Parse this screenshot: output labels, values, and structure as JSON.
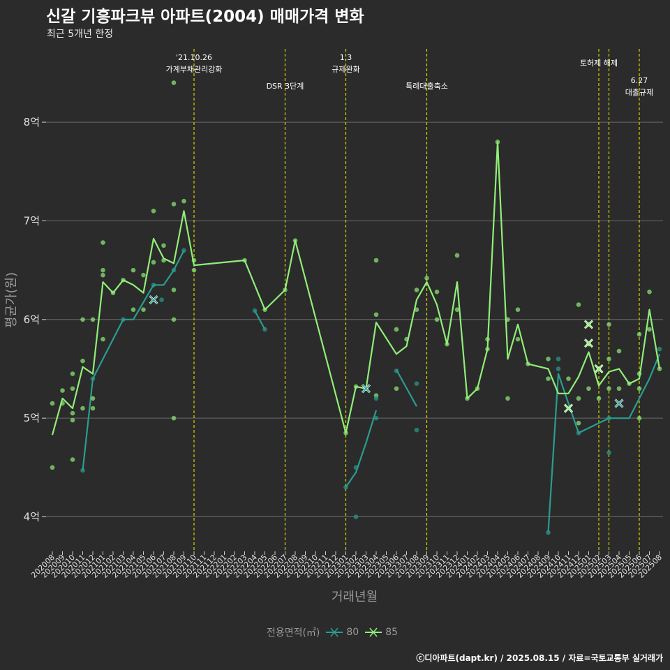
{
  "title": "신갈 기흥파크뷰 아파트(2004) 매매가격 변화",
  "subtitle": "최근 5개년 한정",
  "caption": "ⓒ디아파트(dapt.kr) / 2025.08.15 / 자료=국토교통부 실거래가",
  "colors": {
    "background": "#2b2b2b",
    "grid": "#6a6a6a",
    "series_80": "#2a9d8f",
    "series_85": "#90ee78",
    "event_line": "#d4d400",
    "axis_text": "#9a9a9a"
  },
  "chart_data": {
    "type": "line",
    "title": "신갈 기흥파크뷰 아파트(2004) 매매가격 변화",
    "subtitle": "최근 5개년 한정",
    "xlabel": "거래년월",
    "ylabel": "평균가(원)",
    "ylim": [
      3.65,
      8.8
    ],
    "y_ticks": [
      4,
      5,
      6,
      7,
      8
    ],
    "y_tick_labels": [
      "4억",
      "5억",
      "6억",
      "7억",
      "8억"
    ],
    "grid": true,
    "legend_position": "bottom",
    "legend_title": "전용면적(㎡)",
    "categories": [
      "202008",
      "202009",
      "202010",
      "202011",
      "202012",
      "202101",
      "202102",
      "202103",
      "202104",
      "202105",
      "202106",
      "202107",
      "202108",
      "202109",
      "202110",
      "202111",
      "202112",
      "202201",
      "202202",
      "202203",
      "202204",
      "202205",
      "202206",
      "202207",
      "202208",
      "202209",
      "202210",
      "202211",
      "202212",
      "202301",
      "202302",
      "202303",
      "202304",
      "202305",
      "202306",
      "202307",
      "202308",
      "202309",
      "202310",
      "202311",
      "202312",
      "202401",
      "202402",
      "202403",
      "202404",
      "202405",
      "202406",
      "202407",
      "202408",
      "202409",
      "202410",
      "202411",
      "202412",
      "202501",
      "202502",
      "202503",
      "202504",
      "202505",
      "202506",
      "202507",
      "202508"
    ],
    "events": [
      {
        "x": 14.0,
        "lines": [
          "'21.10.26",
          "가계부채관리강화"
        ],
        "level": 0
      },
      {
        "x": 23.0,
        "lines": [
          "DSR 3단계"
        ],
        "level": 1
      },
      {
        "x": 29.0,
        "lines": [
          "1.3",
          "규제완화"
        ],
        "level": 0
      },
      {
        "x": 37.0,
        "lines": [
          "특례대출축소"
        ],
        "level": 1
      },
      {
        "x": 54.0,
        "lines": [
          "토허제 해제"
        ],
        "level": 0
      },
      {
        "x": 55.0,
        "lines": [],
        "level": 0
      },
      {
        "x": 58.0,
        "lines": [
          "6.27",
          "대출규제"
        ],
        "level": 1
      }
    ],
    "series": [
      {
        "name": "80",
        "color": "#2a9d8f",
        "points": [
          [
            3,
            4.47
          ],
          [
            4,
            5.4
          ],
          [
            7,
            6.0
          ],
          [
            8,
            6.0
          ],
          [
            10,
            6.35
          ],
          [
            11,
            6.35
          ],
          [
            12,
            6.5
          ],
          [
            13,
            6.7
          ],
          [
            20,
            6.09
          ],
          [
            21,
            5.9
          ],
          [
            29,
            4.3
          ],
          [
            30,
            4.45
          ],
          [
            31,
            4.75
          ],
          [
            32,
            5.08
          ],
          [
            34,
            5.49
          ],
          [
            36,
            5.12
          ],
          [
            49,
            3.84
          ],
          [
            50,
            5.45
          ],
          [
            52,
            4.85
          ],
          [
            53,
            4.9
          ],
          [
            55,
            5.0
          ],
          [
            57,
            5.0
          ],
          [
            59,
            5.4
          ],
          [
            60,
            5.65
          ]
        ],
        "scatter": [
          [
            3,
            4.47
          ],
          [
            4,
            5.4
          ],
          [
            7,
            6.0
          ],
          [
            10,
            6.35
          ],
          [
            10.8,
            6.2
          ],
          [
            12,
            6.5
          ],
          [
            13,
            6.7
          ],
          [
            20,
            6.09
          ],
          [
            21,
            5.9
          ],
          [
            29,
            4.3
          ],
          [
            30,
            4.5
          ],
          [
            30,
            4.0
          ],
          [
            31,
            5.3
          ],
          [
            32,
            5.0
          ],
          [
            32,
            5.2
          ],
          [
            34,
            5.48
          ],
          [
            36,
            4.88
          ],
          [
            36,
            5.35
          ],
          [
            49,
            3.84
          ],
          [
            50,
            5.5
          ],
          [
            50,
            5.6
          ],
          [
            52,
            4.85
          ],
          [
            55,
            4.65
          ],
          [
            55,
            5.0
          ],
          [
            60,
            5.7
          ]
        ],
        "segments": [
          [
            [
              3,
              4.47
            ],
            [
              4,
              5.4
            ],
            [
              7,
              6.0
            ],
            [
              8,
              6.0
            ],
            [
              10,
              6.35
            ],
            [
              11,
              6.35
            ],
            [
              12,
              6.5
            ],
            [
              13,
              6.7
            ]
          ],
          [
            [
              20,
              6.09
            ],
            [
              21,
              5.9
            ]
          ],
          [
            [
              29,
              4.3
            ],
            [
              30,
              4.45
            ],
            [
              31,
              4.75
            ],
            [
              32,
              5.08
            ]
          ],
          [
            [
              34,
              5.49
            ],
            [
              36,
              5.12
            ]
          ],
          [
            [
              49,
              3.84
            ],
            [
              50,
              5.45
            ],
            [
              52,
              4.85
            ],
            [
              53,
              4.9
            ],
            [
              55,
              5.0
            ],
            [
              57,
              5.0
            ],
            [
              59,
              5.4
            ],
            [
              60,
              5.65
            ]
          ]
        ],
        "x_marks": [
          [
            10,
            6.2
          ],
          [
            31,
            5.3
          ],
          [
            56,
            5.15
          ]
        ]
      },
      {
        "name": "85",
        "color": "#90ee78",
        "points": [
          [
            0,
            4.83
          ],
          [
            1,
            5.2
          ],
          [
            2,
            5.1
          ],
          [
            3,
            5.52
          ],
          [
            4,
            5.45
          ],
          [
            5,
            6.38
          ],
          [
            6,
            6.27
          ],
          [
            7,
            6.4
          ],
          [
            8,
            6.35
          ],
          [
            9,
            6.27
          ],
          [
            10,
            6.82
          ],
          [
            11,
            6.62
          ],
          [
            12,
            6.57
          ],
          [
            13,
            7.1
          ],
          [
            14,
            6.55
          ],
          [
            19,
            6.6
          ],
          [
            21,
            6.1
          ],
          [
            23,
            6.3
          ],
          [
            24,
            6.8
          ],
          [
            29,
            4.85
          ],
          [
            30,
            5.32
          ],
          [
            31,
            5.3
          ],
          [
            32,
            5.97
          ],
          [
            34,
            5.65
          ],
          [
            35,
            5.73
          ],
          [
            36,
            6.2
          ],
          [
            37,
            6.38
          ],
          [
            38,
            6.15
          ],
          [
            39,
            5.75
          ],
          [
            40,
            6.38
          ],
          [
            41,
            5.2
          ],
          [
            42,
            5.3
          ],
          [
            43,
            5.7
          ],
          [
            44,
            7.8
          ],
          [
            45,
            5.6
          ],
          [
            46,
            5.95
          ],
          [
            47,
            5.55
          ],
          [
            49,
            5.5
          ],
          [
            50,
            5.25
          ],
          [
            51,
            5.25
          ],
          [
            52,
            5.42
          ],
          [
            53,
            5.67
          ],
          [
            54,
            5.33
          ],
          [
            55,
            5.47
          ],
          [
            56,
            5.5
          ],
          [
            57,
            5.35
          ],
          [
            58,
            5.4
          ],
          [
            59,
            6.1
          ],
          [
            60,
            5.5
          ]
        ],
        "scatter": [
          [
            0,
            5.15
          ],
          [
            0,
            4.5
          ],
          [
            1,
            5.28
          ],
          [
            1,
            5.15
          ],
          [
            2,
            5.05
          ],
          [
            2,
            5.3
          ],
          [
            2,
            5.45
          ],
          [
            2,
            4.58
          ],
          [
            2,
            4.98
          ],
          [
            3,
            5.1
          ],
          [
            3,
            5.58
          ],
          [
            3,
            6.0
          ],
          [
            4,
            5.2
          ],
          [
            4,
            5.1
          ],
          [
            4,
            6.0
          ],
          [
            5,
            6.5
          ],
          [
            5,
            6.78
          ],
          [
            5,
            5.8
          ],
          [
            5,
            6.45
          ],
          [
            6,
            6.27
          ],
          [
            7,
            6.4
          ],
          [
            8,
            6.5
          ],
          [
            8,
            6.1
          ],
          [
            9,
            6.45
          ],
          [
            9,
            6.1
          ],
          [
            10,
            6.58
          ],
          [
            10,
            7.1
          ],
          [
            11,
            6.75
          ],
          [
            11,
            6.6
          ],
          [
            12,
            8.4
          ],
          [
            12,
            7.17
          ],
          [
            12,
            6.3
          ],
          [
            12,
            6.0
          ],
          [
            12,
            5.0
          ],
          [
            13,
            7.2
          ],
          [
            14,
            6.6
          ],
          [
            14,
            6.5
          ],
          [
            19,
            6.6
          ],
          [
            21,
            6.1
          ],
          [
            23,
            6.3
          ],
          [
            24,
            6.8
          ],
          [
            29,
            4.85
          ],
          [
            30,
            5.32
          ],
          [
            31,
            5.3
          ],
          [
            32,
            6.05
          ],
          [
            32,
            6.6
          ],
          [
            32,
            5.23
          ],
          [
            34,
            5.9
          ],
          [
            34,
            5.3
          ],
          [
            35,
            5.8
          ],
          [
            36,
            6.3
          ],
          [
            36,
            6.1
          ],
          [
            37,
            6.42
          ],
          [
            38,
            6.28
          ],
          [
            38,
            6.0
          ],
          [
            39,
            5.75
          ],
          [
            40,
            6.65
          ],
          [
            40,
            6.1
          ],
          [
            41,
            5.2
          ],
          [
            42,
            5.3
          ],
          [
            43,
            5.8
          ],
          [
            43,
            5.7
          ],
          [
            44,
            7.8
          ],
          [
            45,
            6.0
          ],
          [
            45,
            5.2
          ],
          [
            46,
            6.1
          ],
          [
            46,
            5.8
          ],
          [
            47,
            5.55
          ],
          [
            49,
            5.6
          ],
          [
            49,
            5.4
          ],
          [
            51,
            5.4
          ],
          [
            52,
            6.15
          ],
          [
            52,
            5.2
          ],
          [
            52,
            4.95
          ],
          [
            53,
            5.95
          ],
          [
            53,
            5.75
          ],
          [
            53,
            5.3
          ],
          [
            54,
            5.2
          ],
          [
            54,
            5.5
          ],
          [
            55,
            5.95
          ],
          [
            55,
            5.6
          ],
          [
            55,
            5.3
          ],
          [
            56,
            5.68
          ],
          [
            56,
            5.3
          ],
          [
            57,
            5.35
          ],
          [
            58,
            5.85
          ],
          [
            58,
            5.45
          ],
          [
            58,
            5.3
          ],
          [
            58,
            5.0
          ],
          [
            59,
            6.28
          ],
          [
            59,
            5.9
          ],
          [
            60,
            5.5
          ]
        ],
        "x_marks": [
          [
            51,
            5.1
          ],
          [
            53,
            5.95
          ],
          [
            53,
            5.76
          ],
          [
            54,
            5.5
          ]
        ]
      }
    ]
  }
}
